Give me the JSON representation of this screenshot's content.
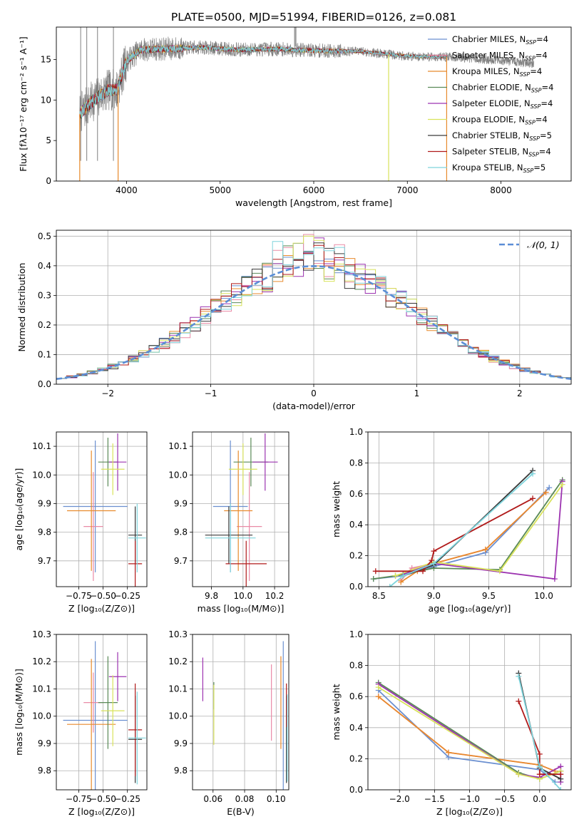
{
  "figure": {
    "title": "PLATE=0500, MJD=51994, FIBERID=0126, z=0.081"
  },
  "models": [
    {
      "name": "Chabrier MILES",
      "nssp": "4",
      "color": "#6a8fd0"
    },
    {
      "name": "Salpeter MILES",
      "nssp": "4",
      "color": "#e98aa6"
    },
    {
      "name": "Kroupa MILES",
      "nssp": "4",
      "color": "#e88a2c"
    },
    {
      "name": "Chabrier ELODIE",
      "nssp": "4",
      "color": "#5a8a57"
    },
    {
      "name": "Salpeter ELODIE",
      "nssp": "4",
      "color": "#9c33b0"
    },
    {
      "name": "Kroupa ELODIE",
      "nssp": "4",
      "color": "#d8e25a"
    },
    {
      "name": "Chabrier STELIB",
      "nssp": "5",
      "color": "#3a3a3a"
    },
    {
      "name": "Salpeter STELIB",
      "nssp": "4",
      "color": "#b01a1a"
    },
    {
      "name": "Kroupa STELIB",
      "nssp": "5",
      "color": "#7fd4dc"
    }
  ],
  "legend_nssp_prefix": "N",
  "legend_nssp_sub": "SSP",
  "chart_data": [
    {
      "id": "spectrum",
      "type": "line",
      "xlabel": "wavelength [Angstrom, rest frame]",
      "ylabel": "Flux [fλ10⁻¹⁷ erg cm⁻² s⁻¹ A⁻¹]",
      "xlim": [
        3250,
        8750
      ],
      "ylim": [
        0,
        19
      ],
      "xticks": [
        4000,
        5000,
        6000,
        7000,
        8000
      ],
      "yticks": [
        0,
        5,
        10,
        15
      ],
      "data_color": "#808080",
      "x_range": [
        3500,
        8350
      ],
      "continuum": [
        [
          3500,
          8.3
        ],
        [
          3650,
          10.0
        ],
        [
          3800,
          11.2
        ],
        [
          3900,
          11.3
        ],
        [
          4000,
          14.8
        ],
        [
          4150,
          16.2
        ],
        [
          4400,
          16.3
        ],
        [
          4800,
          16.5
        ],
        [
          5200,
          16.2
        ],
        [
          5600,
          16.3
        ],
        [
          6000,
          16.1
        ],
        [
          6500,
          16.0
        ],
        [
          7000,
          15.4
        ],
        [
          7500,
          15.3
        ],
        [
          8000,
          14.9
        ],
        [
          8350,
          14.5
        ]
      ],
      "grid": false,
      "legend": "right"
    },
    {
      "id": "residuals",
      "type": "histogram",
      "xlabel": "(data-model)/error",
      "ylabel": "Normed distribution",
      "xlim": [
        -2.5,
        2.5
      ],
      "ylim": [
        0,
        0.52
      ],
      "xticks": [
        -2,
        -1,
        0,
        1,
        2
      ],
      "yticks": [
        0,
        0.1,
        0.2,
        0.3,
        0.4,
        0.5
      ],
      "bin_width": 0.1,
      "reference_label": "𝒩(0, 1)",
      "reference_color": "#5b8ed6",
      "grid": true,
      "legend": "top-right"
    },
    {
      "id": "age-vs-z",
      "type": "errorbar",
      "xlabel": "Z [log₁₀(Z/Z⊙)]",
      "ylabel": "age  [log₁₀(age/yr)]",
      "xlim": [
        -0.98,
        -0.05
      ],
      "ylim": [
        9.61,
        10.15
      ],
      "xticks": [
        -0.75,
        -0.5,
        -0.25
      ],
      "yticks": [
        9.7,
        9.8,
        9.9,
        10.0,
        10.1
      ],
      "points": [
        {
          "x": -0.58,
          "xerr": 0.33,
          "y": 9.89,
          "yerr": 0.23
        },
        {
          "x": -0.6,
          "xerr": 0.1,
          "y": 9.82,
          "yerr": 0.19
        },
        {
          "x": -0.62,
          "xerr": 0.25,
          "y": 9.875,
          "yerr": 0.21
        },
        {
          "x": -0.45,
          "xerr": 0.1,
          "y": 10.045,
          "yerr": 0.085
        },
        {
          "x": -0.35,
          "xerr": 0.09,
          "y": 10.045,
          "yerr": 0.1
        },
        {
          "x": -0.4,
          "xerr": 0.12,
          "y": 10.02,
          "yerr": 0.09
        },
        {
          "x": -0.17,
          "xerr": 0.07,
          "y": 9.79,
          "yerr": 0.1
        },
        {
          "x": -0.17,
          "xerr": 0.07,
          "y": 9.69,
          "yerr": 0.08
        },
        {
          "x": -0.15,
          "xerr": 0.09,
          "y": 9.78,
          "yerr": 0.12
        }
      ]
    },
    {
      "id": "age-vs-mass",
      "type": "errorbar",
      "xlabel": "mass [log₁₀(M/M⊙)]",
      "ylabel": "",
      "xlim": [
        9.68,
        10.29
      ],
      "ylim": [
        9.61,
        10.15
      ],
      "xticks": [
        9.8,
        10.0,
        10.2
      ],
      "yticks": [
        9.7,
        9.8,
        9.9,
        10.0,
        10.1
      ],
      "points": [
        {
          "x": 9.92,
          "xerr": 0.11,
          "y": 9.89,
          "yerr": 0.23
        },
        {
          "x": 10.04,
          "xerr": 0.08,
          "y": 9.82,
          "yerr": 0.19
        },
        {
          "x": 9.97,
          "xerr": 0.09,
          "y": 9.875,
          "yerr": 0.21
        },
        {
          "x": 10.05,
          "xerr": 0.11,
          "y": 10.045,
          "yerr": 0.085
        },
        {
          "x": 10.14,
          "xerr": 0.08,
          "y": 10.045,
          "yerr": 0.1
        },
        {
          "x": 10.0,
          "xerr": 0.09,
          "y": 10.02,
          "yerr": 0.09
        },
        {
          "x": 9.91,
          "xerr": 0.15,
          "y": 9.79,
          "yerr": 0.1
        },
        {
          "x": 10.02,
          "xerr": 0.13,
          "y": 9.69,
          "yerr": 0.08
        },
        {
          "x": 9.92,
          "xerr": 0.16,
          "y": 9.78,
          "yerr": 0.12
        }
      ]
    },
    {
      "id": "mass-weight-vs-age",
      "type": "line",
      "xlabel": "age  [log₁₀(age/yr)]",
      "ylabel": "mass weight",
      "xlim": [
        8.4,
        10.25
      ],
      "ylim": [
        0,
        1.0
      ],
      "xticks": [
        8.5,
        9.0,
        9.5,
        10.0
      ],
      "yticks": [
        0.0,
        0.2,
        0.4,
        0.6,
        0.8,
        1.0
      ],
      "grid": true,
      "series": [
        {
          "x": [
            8.45,
            8.72,
            9.0,
            9.47,
            10.05
          ],
          "y": [
            0.05,
            0.07,
            0.13,
            0.22,
            0.64
          ]
        },
        {
          "x": [
            8.7,
            8.8,
            9.0,
            9.47,
            10.02
          ],
          "y": [
            0.04,
            0.12,
            0.15,
            0.24,
            0.61
          ]
        },
        {
          "x": [
            8.7,
            8.85,
            9.0,
            9.47,
            10.02
          ],
          "y": [
            0.03,
            0.1,
            0.15,
            0.24,
            0.61
          ]
        },
        {
          "x": [
            8.45,
            8.65,
            9.0,
            9.6,
            10.17
          ],
          "y": [
            0.05,
            0.07,
            0.12,
            0.11,
            0.69
          ]
        },
        {
          "x": [
            8.72,
            9.0,
            10.1,
            10.17
          ],
          "y": [
            0.08,
            0.15,
            0.05,
            0.68
          ]
        },
        {
          "x": [
            8.65,
            9.0,
            9.6,
            10.17
          ],
          "y": [
            0.07,
            0.16,
            0.1,
            0.66
          ]
        },
        {
          "x": [
            8.72,
            9.0,
            9.9
          ],
          "y": [
            0.07,
            0.14,
            0.75
          ]
        },
        {
          "x": [
            8.47,
            8.9,
            8.98,
            9.0,
            9.9
          ],
          "y": [
            0.1,
            0.1,
            0.17,
            0.23,
            0.57
          ]
        },
        {
          "x": [
            8.6,
            8.72,
            9.0,
            9.9
          ],
          "y": [
            0.0,
            0.07,
            0.15,
            0.73
          ]
        }
      ]
    },
    {
      "id": "mass-vs-z",
      "type": "errorbar",
      "xlabel": "Z [log₁₀(Z/Z⊙)]",
      "ylabel": "mass [log₁₀(M/M⊙)]",
      "xlim": [
        -0.98,
        -0.05
      ],
      "ylim": [
        9.73,
        10.3
      ],
      "xticks": [
        -0.75,
        -0.5,
        -0.25
      ],
      "yticks": [
        9.8,
        9.9,
        10.0,
        10.1,
        10.2,
        10.3
      ],
      "points": [
        {
          "x": -0.58,
          "xerr": 0.33,
          "y": 9.985,
          "yerr": 0.29
        },
        {
          "x": -0.6,
          "xerr": 0.1,
          "y": 10.05,
          "yerr": 0.11
        },
        {
          "x": -0.62,
          "xerr": 0.25,
          "y": 9.97,
          "yerr": 0.24
        },
        {
          "x": -0.45,
          "xerr": 0.1,
          "y": 10.05,
          "yerr": 0.17
        },
        {
          "x": -0.35,
          "xerr": 0.09,
          "y": 10.145,
          "yerr": 0.09
        },
        {
          "x": -0.4,
          "xerr": 0.12,
          "y": 10.02,
          "yerr": 0.13
        },
        {
          "x": -0.17,
          "xerr": 0.07,
          "y": 9.915,
          "yerr": 0.16
        },
        {
          "x": -0.17,
          "xerr": 0.07,
          "y": 9.95,
          "yerr": 0.17
        },
        {
          "x": -0.15,
          "xerr": 0.09,
          "y": 9.92,
          "yerr": 0.17
        }
      ]
    },
    {
      "id": "mass-vs-ebv",
      "type": "errorbar",
      "xlabel": "E(B-V)",
      "ylabel": "",
      "xlim": [
        0.047,
        0.108
      ],
      "ylim": [
        9.73,
        10.3
      ],
      "xticks": [
        0.06,
        0.08,
        0.1
      ],
      "yticks": [
        9.8,
        9.9,
        10.0,
        10.1,
        10.2,
        10.3
      ],
      "points": [
        {
          "x": 0.1045,
          "y": 9.985,
          "yerr": 0.29
        },
        {
          "x": 0.097,
          "y": 10.05,
          "yerr": 0.14
        },
        {
          "x": 0.103,
          "y": 10.05,
          "yerr": 0.17
        },
        {
          "x": 0.0605,
          "y": 10.075,
          "yerr": 0.05
        },
        {
          "x": 0.0535,
          "y": 10.135,
          "yerr": 0.08
        },
        {
          "x": 0.0605,
          "y": 10.005,
          "yerr": 0.11
        },
        {
          "x": 0.1065,
          "y": 9.915,
          "yerr": 0.16
        },
        {
          "x": 0.1065,
          "y": 10.04,
          "yerr": 0.08
        },
        {
          "x": 0.107,
          "y": 9.92,
          "yerr": 0.16
        }
      ]
    },
    {
      "id": "mass-weight-vs-z",
      "type": "line",
      "xlabel": "Z [log₁₀(Z/Z⊙)]",
      "ylabel": "mass weight",
      "xlim": [
        -2.45,
        0.45
      ],
      "ylim": [
        0,
        1.0
      ],
      "xticks": [
        -2.0,
        -1.5,
        -1.0,
        -0.5,
        0.0
      ],
      "yticks": [
        0.0,
        0.2,
        0.4,
        0.6,
        0.8,
        1.0
      ],
      "grid": true,
      "series": [
        {
          "x": [
            -2.3,
            -1.3,
            0.0,
            0.22
          ],
          "y": [
            0.64,
            0.21,
            0.13,
            0.05
          ]
        },
        {
          "x": [
            -2.3,
            -1.3,
            0.0,
            0.22
          ],
          "y": [
            0.6,
            0.24,
            0.16,
            0.12
          ]
        },
        {
          "x": [
            -2.3,
            -1.3,
            0.0,
            0.22
          ],
          "y": [
            0.6,
            0.24,
            0.16,
            0.12
          ]
        },
        {
          "x": [
            -2.3,
            -0.3,
            0.0,
            0.3
          ],
          "y": [
            0.69,
            0.11,
            0.07,
            0.12
          ]
        },
        {
          "x": [
            -2.3,
            -0.3,
            0.0,
            0.3,
            0.3
          ],
          "y": [
            0.68,
            0.1,
            0.08,
            0.15,
            0.05
          ]
        },
        {
          "x": [
            -2.3,
            -0.3,
            0.0,
            0.3
          ],
          "y": [
            0.66,
            0.1,
            0.07,
            0.12
          ]
        },
        {
          "x": [
            -0.3,
            0.0,
            0.3
          ],
          "y": [
            0.75,
            0.14,
            0.07
          ]
        },
        {
          "x": [
            -0.3,
            0.0,
            0.0,
            0.3
          ],
          "y": [
            0.57,
            0.23,
            0.1,
            0.1
          ]
        },
        {
          "x": [
            -0.3,
            0.0,
            0.3
          ],
          "y": [
            0.73,
            0.15,
            0.0
          ]
        }
      ]
    }
  ]
}
